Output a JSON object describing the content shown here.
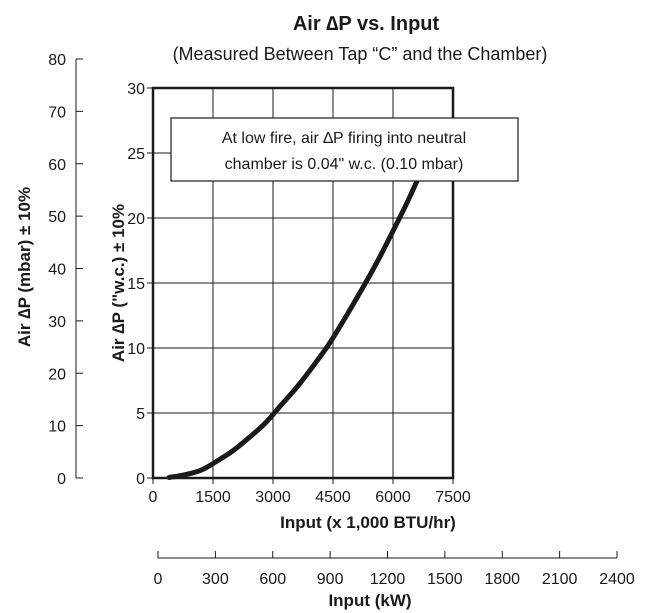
{
  "chart_data": {
    "type": "line",
    "title": "Air ∆P vs. Input",
    "subtitle": "(Measured Between Tap “C” and the Chamber)",
    "xlabel": "Input (x 1,000 BTU/hr)",
    "xlim": [
      0,
      7500
    ],
    "xticks": [
      "0",
      "1500",
      "3000",
      "4500",
      "6000",
      "7500"
    ],
    "x2label": "Input (kW)",
    "x2lim": [
      0,
      2400
    ],
    "x2ticks": [
      "0",
      "300",
      "600",
      "900",
      "1200",
      "1500",
      "1800",
      "2100",
      "2400"
    ],
    "ylabel": "Air ∆P (\"w.c.) ± 10%",
    "ylim": [
      0,
      30
    ],
    "yticks": [
      "0",
      "5",
      "10",
      "15",
      "20",
      "25",
      "30"
    ],
    "y2label": "Air ∆P (mbar) ± 10%",
    "y2lim": [
      0,
      80
    ],
    "y2ticks": [
      "0",
      "10",
      "20",
      "30",
      "40",
      "50",
      "60",
      "70",
      "80"
    ],
    "grid": true,
    "annotation": [
      "At low fire, air ∆P firing into neutral",
      "chamber is 0.04\" w.c. (0.10 mbar)"
    ],
    "series": [
      {
        "x": [
          400,
          800,
          1200,
          1600,
          2000,
          2400,
          2800,
          3200,
          3600,
          4000,
          4400,
          4800,
          5200,
          5600,
          6000,
          6400,
          6800,
          7100
        ],
        "y": [
          0.04,
          0.25,
          0.6,
          1.3,
          2.1,
          3.1,
          4.2,
          5.6,
          7.0,
          8.6,
          10.3,
          12.3,
          14.4,
          16.6,
          19.0,
          21.5,
          24.3,
          27.0
        ]
      }
    ],
    "colors": {
      "line": "#1a1a1a",
      "grid": "#1a1a1a"
    }
  }
}
